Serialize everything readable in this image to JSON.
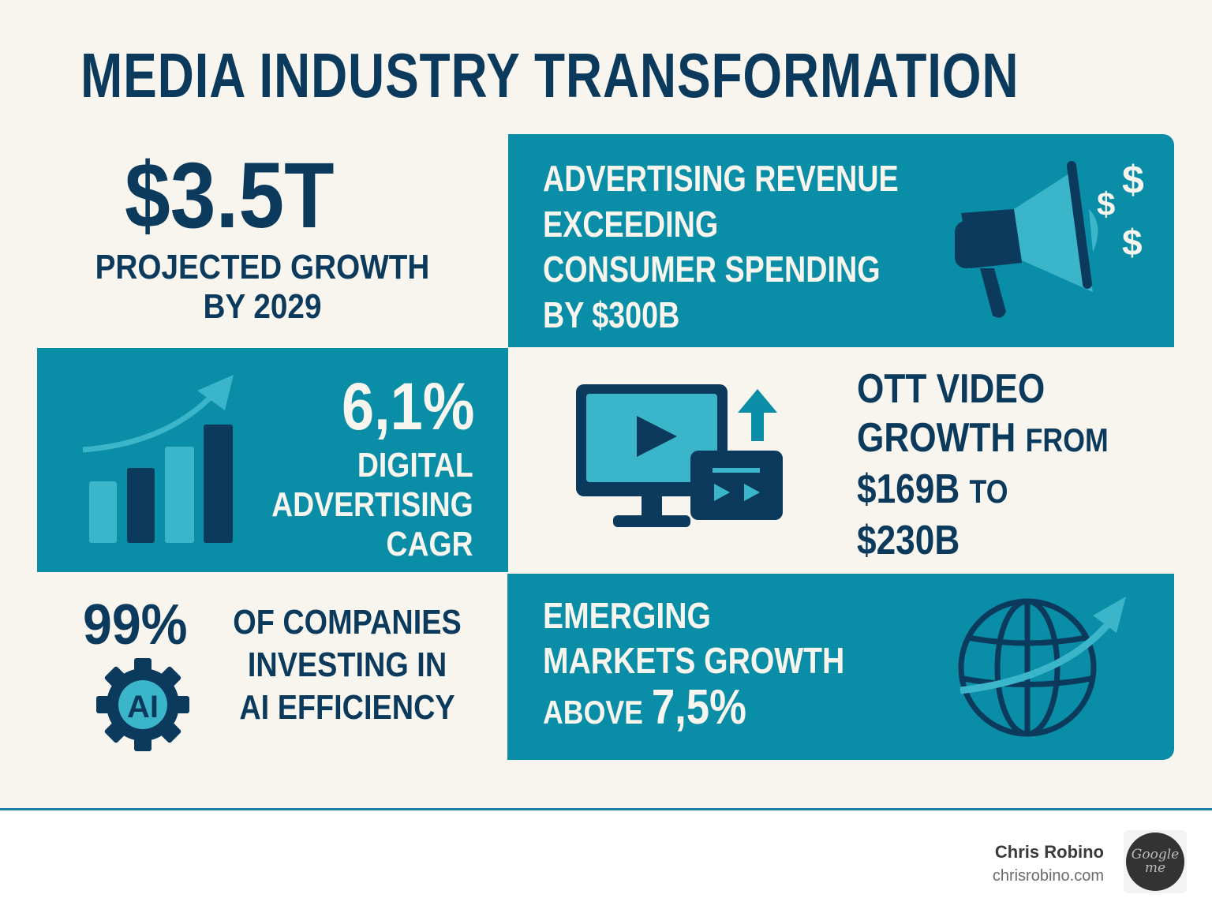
{
  "title": "MEDIA INDUSTRY TRANSFORMATION",
  "colors": {
    "background": "#f7f5ee",
    "teal": "#0a8da6",
    "navy": "#0b3a5c",
    "light_teal": "#3ab5c9",
    "footer_line": "#1b7fa6"
  },
  "stat_growth": {
    "value": "$3.5T",
    "line1": "PROJECTED GROWTH",
    "line2": "BY 2029"
  },
  "stat_ad_revenue": {
    "lines": [
      "ADVERTISING REVENUE",
      "EXCEEDING",
      "CONSUMER SPENDING",
      "BY $300B"
    ],
    "icon": "megaphone-icon"
  },
  "stat_digital": {
    "value": "6,1%",
    "lines": [
      "DIGITAL",
      "ADVERTISING",
      "CAGR"
    ],
    "icon": "bar-chart-growth-icon"
  },
  "stat_ott": {
    "line1": "OTT VIDEO",
    "line2a": "GROWTH",
    "line2b": "FROM",
    "line3a": "$169B",
    "line3b": "TO",
    "line4": "$230B",
    "icon": "monitor-video-icon"
  },
  "stat_ai": {
    "value": "99%",
    "lines": [
      "OF COMPANIES",
      "INVESTING IN",
      "AI EFFICIENCY"
    ],
    "badge": "AI",
    "icon": "ai-gear-icon"
  },
  "stat_emerging": {
    "line1": "EMERGING",
    "line2": "MARKETS GROWTH",
    "line3a": "ABOVE",
    "line3b": "7,5%",
    "icon": "globe-growth-icon"
  },
  "footer": {
    "name": "Chris Robino",
    "site": "chrisrobino.com",
    "logo_text": "Google me"
  }
}
